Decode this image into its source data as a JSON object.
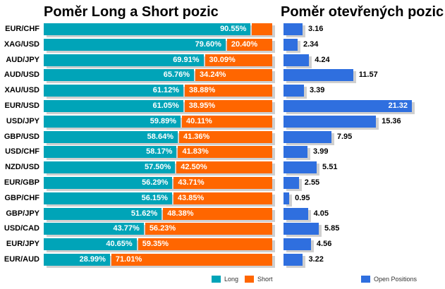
{
  "chart_data": [
    {
      "type": "bar",
      "orientation": "horizontal",
      "stacked": true,
      "title": "Poměr Long a Short pozic",
      "categories": [
        "EUR/CHF",
        "XAG/USD",
        "AUD/JPY",
        "AUD/USD",
        "XAU/USD",
        "EUR/USD",
        "USD/JPY",
        "GBP/USD",
        "USD/CHF",
        "NZD/USD",
        "EUR/GBP",
        "GBP/CHF",
        "GBP/JPY",
        "USD/CAD",
        "EUR/JPY",
        "EUR/AUD"
      ],
      "series": [
        {
          "name": "Long",
          "color": "#00a4b8",
          "labels": [
            "90.55%",
            "79.60%",
            "69.91%",
            "65.76%",
            "61.12%",
            "61.05%",
            "59.89%",
            "58.64%",
            "58.17%",
            "57.50%",
            "56.29%",
            "56.15%",
            "51.62%",
            "43.77%",
            "40.65%",
            "28.99%"
          ],
          "values": [
            90.55,
            79.6,
            69.91,
            65.76,
            61.12,
            61.05,
            59.89,
            58.64,
            58.17,
            57.5,
            56.29,
            56.15,
            51.62,
            43.77,
            40.65,
            28.99
          ]
        },
        {
          "name": "Short",
          "color": "#ff6600",
          "labels": [
            "",
            "20.40%",
            "30.09%",
            "34.24%",
            "38.88%",
            "38.95%",
            "40.11%",
            "41.36%",
            "41.83%",
            "42.50%",
            "43.71%",
            "43.85%",
            "48.38%",
            "56.23%",
            "59.35%",
            "71.01%"
          ],
          "values": [
            9.45,
            20.4,
            30.09,
            34.24,
            38.88,
            38.95,
            40.11,
            41.36,
            41.83,
            42.5,
            43.71,
            43.85,
            48.38,
            56.23,
            59.35,
            71.01
          ]
        }
      ],
      "xlim": [
        0,
        100
      ],
      "legend": "bottom"
    },
    {
      "type": "bar",
      "orientation": "horizontal",
      "title": "Poměr otevřených pozic",
      "categories": [
        "EUR/CHF",
        "XAG/USD",
        "AUD/JPY",
        "AUD/USD",
        "XAU/USD",
        "EUR/USD",
        "USD/JPY",
        "GBP/USD",
        "USD/CHF",
        "NZD/USD",
        "EUR/GBP",
        "GBP/CHF",
        "GBP/JPY",
        "USD/CAD",
        "EUR/JPY",
        "EUR/AUD"
      ],
      "series": [
        {
          "name": "Open Positions",
          "color": "#2f6fdf",
          "labels": [
            "3.16",
            "2.34",
            "4.24",
            "11.57",
            "3.39",
            "21.32",
            "15.36",
            "7.95",
            "3.99",
            "5.51",
            "2.55",
            "0.95",
            "4.05",
            "5.85",
            "4.56",
            "3.22"
          ],
          "values": [
            3.16,
            2.34,
            4.24,
            11.57,
            3.39,
            21.32,
            15.36,
            7.95,
            3.99,
            5.51,
            2.55,
            0.95,
            4.05,
            5.85,
            4.56,
            3.22
          ]
        }
      ],
      "xlim": [
        0,
        21.32
      ],
      "legend": "bottom"
    }
  ]
}
